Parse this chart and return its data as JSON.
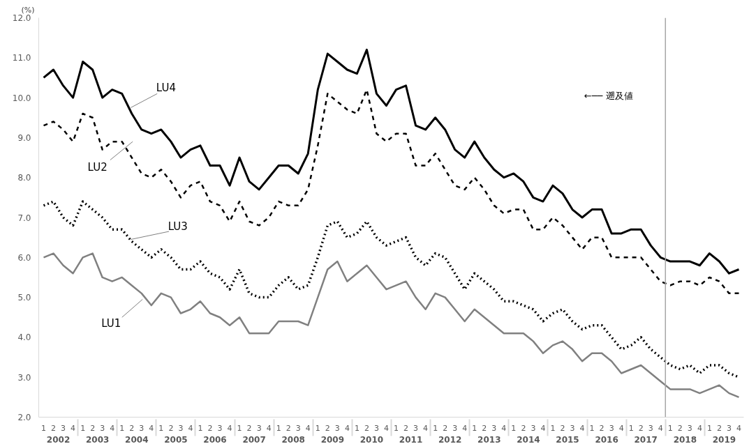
{
  "chart_data": {
    "type": "line",
    "ylabel": "(%)",
    "categories": [
      "1",
      "2",
      "3",
      "4",
      "1",
      "2",
      "3",
      "4",
      "1",
      "2",
      "3",
      "4",
      "1",
      "2",
      "3",
      "4",
      "1",
      "2",
      "3",
      "4",
      "1",
      "2",
      "3",
      "4",
      "1",
      "2",
      "3",
      "4",
      "1",
      "2",
      "3",
      "4",
      "1",
      "2",
      "3",
      "4",
      "1",
      "2",
      "3",
      "4",
      "1",
      "2",
      "3",
      "4",
      "1",
      "2",
      "3",
      "4",
      "1",
      "2",
      "3",
      "4",
      "1",
      "2",
      "3",
      "4",
      "1",
      "2",
      "3",
      "4",
      "1",
      "2",
      "3",
      "4",
      "1",
      "2",
      "3",
      "4",
      "1",
      "2",
      "3",
      "4"
    ],
    "annotations": [
      "2002",
      "2003",
      "2004",
      "2005",
      "2006",
      "2007",
      "2008",
      "2009",
      "2010",
      "2011",
      "2012",
      "2013",
      "2014",
      "2015",
      "2016",
      "2017",
      "2018",
      "2019",
      "←── 遡及値"
    ],
    "ylim": [
      2,
      12
    ],
    "yticks": [
      {
        "value": 2,
        "label": "2.0"
      },
      {
        "value": 3,
        "label": "3.0"
      },
      {
        "value": 4,
        "label": "4.0"
      },
      {
        "value": 5,
        "label": "5.0"
      },
      {
        "value": 6,
        "label": "6.0"
      },
      {
        "value": 7,
        "label": "7.0"
      },
      {
        "value": 8,
        "label": "8.0"
      },
      {
        "value": 9,
        "label": "9.0"
      },
      {
        "value": 10,
        "label": "10.0"
      },
      {
        "value": 11,
        "label": "11.0"
      },
      {
        "value": 12,
        "label": "12.0"
      }
    ],
    "grid": false,
    "legend": false,
    "marker": "none",
    "series": [
      {
        "name": "LU4",
        "color": "#000000",
        "line_style": "solid",
        "values": [
          10.5,
          10.7,
          10.3,
          10.0,
          10.9,
          10.7,
          10.0,
          10.2,
          10.1,
          9.6,
          9.2,
          9.1,
          9.2,
          8.9,
          8.5,
          8.7,
          8.8,
          8.3,
          8.3,
          7.8,
          8.5,
          7.9,
          7.7,
          8.0,
          8.3,
          8.3,
          8.1,
          8.6,
          10.2,
          11.1,
          10.9,
          10.7,
          10.6,
          11.2,
          10.1,
          9.8,
          10.2,
          10.3,
          9.3,
          9.2,
          9.5,
          9.2,
          8.7,
          8.5,
          8.9,
          8.5,
          8.2,
          8.0,
          8.1,
          7.9,
          7.5,
          7.4,
          7.8,
          7.6,
          7.2,
          7.0,
          7.2,
          7.2,
          6.6,
          6.6,
          6.7,
          6.7,
          6.3,
          6.0,
          5.9,
          5.9,
          5.9,
          5.8,
          6.1,
          5.9,
          5.6,
          5.7
        ]
      },
      {
        "name": "LU2",
        "color": "#000000",
        "line_style": "dashed",
        "values": [
          9.3,
          9.4,
          9.2,
          8.9,
          9.6,
          9.5,
          8.7,
          8.9,
          8.9,
          8.5,
          8.1,
          8.0,
          8.2,
          7.9,
          7.5,
          7.8,
          7.9,
          7.4,
          7.3,
          6.9,
          7.4,
          6.9,
          6.8,
          7.0,
          7.4,
          7.3,
          7.3,
          7.7,
          8.8,
          10.1,
          9.9,
          9.7,
          9.6,
          10.2,
          9.1,
          8.9,
          9.1,
          9.1,
          8.3,
          8.3,
          8.6,
          8.2,
          7.8,
          7.7,
          8.0,
          7.7,
          7.3,
          7.1,
          7.2,
          7.2,
          6.7,
          6.7,
          7.0,
          6.8,
          6.5,
          6.2,
          6.5,
          6.5,
          6.0,
          6.0,
          6.0,
          6.0,
          5.7,
          5.4,
          5.3,
          5.4,
          5.4,
          5.3,
          5.5,
          5.4,
          5.1,
          5.1
        ]
      },
      {
        "name": "LU3",
        "color": "#000000",
        "line_style": "dotted",
        "values": [
          7.3,
          7.4,
          7.0,
          6.8,
          7.4,
          7.2,
          7.0,
          6.7,
          6.7,
          6.4,
          6.2,
          6.0,
          6.2,
          6.0,
          5.7,
          5.7,
          5.9,
          5.6,
          5.5,
          5.2,
          5.7,
          5.1,
          5.0,
          5.0,
          5.3,
          5.5,
          5.2,
          5.3,
          6.0,
          6.8,
          6.9,
          6.5,
          6.6,
          6.9,
          6.5,
          6.3,
          6.4,
          6.5,
          6.0,
          5.8,
          6.1,
          6.0,
          5.6,
          5.2,
          5.6,
          5.4,
          5.2,
          4.9,
          4.9,
          4.8,
          4.7,
          4.4,
          4.6,
          4.7,
          4.4,
          4.2,
          4.3,
          4.3,
          4.0,
          3.7,
          3.8,
          4.0,
          3.7,
          3.5,
          3.3,
          3.2,
          3.3,
          3.1,
          3.3,
          3.3,
          3.1,
          3.0
        ]
      },
      {
        "name": "LU1",
        "color": "#808080",
        "line_style": "solid",
        "values": [
          6.0,
          6.1,
          5.8,
          5.6,
          6.0,
          6.1,
          5.5,
          5.4,
          5.5,
          5.3,
          5.1,
          4.8,
          5.1,
          5.0,
          4.6,
          4.7,
          4.9,
          4.6,
          4.5,
          4.3,
          4.5,
          4.1,
          4.1,
          4.1,
          4.4,
          4.4,
          4.4,
          4.3,
          5.0,
          5.7,
          5.9,
          5.4,
          5.6,
          5.8,
          5.5,
          5.2,
          5.3,
          5.4,
          5.0,
          4.7,
          5.1,
          5.0,
          4.7,
          4.4,
          4.7,
          4.5,
          4.3,
          4.1,
          4.1,
          4.1,
          3.9,
          3.6,
          3.8,
          3.9,
          3.7,
          3.4,
          3.6,
          3.6,
          3.4,
          3.1,
          3.2,
          3.3,
          3.1,
          2.9,
          2.7,
          2.7,
          2.7,
          2.6,
          2.7,
          2.8,
          2.6,
          2.5
        ]
      }
    ]
  }
}
